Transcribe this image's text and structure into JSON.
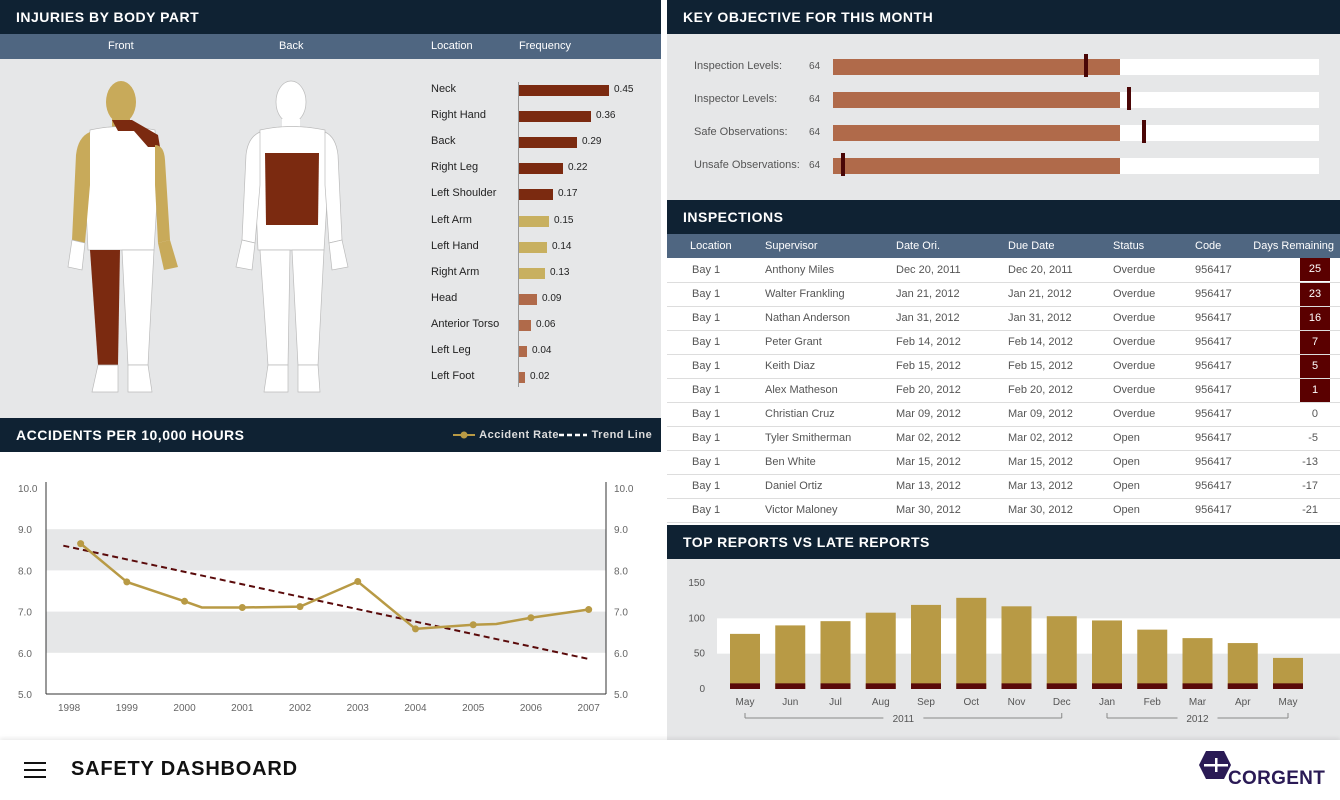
{
  "injuries": {
    "title": "INJURIES BY BODY PART",
    "col_front": "Front",
    "col_back": "Back",
    "col_location": "Location",
    "col_frequency": "Frequency",
    "rows": [
      {
        "label": "Neck",
        "value": "0.45",
        "num": 0.45,
        "color": "#7b2a10"
      },
      {
        "label": "Right Hand",
        "value": "0.36",
        "num": 0.36,
        "color": "#7b2a10"
      },
      {
        "label": "Back",
        "value": "0.29",
        "num": 0.29,
        "color": "#7b2a10"
      },
      {
        "label": "Right Leg",
        "value": "0.22",
        "num": 0.22,
        "color": "#7b2a10"
      },
      {
        "label": "Left Shoulder",
        "value": "0.17",
        "num": 0.17,
        "color": "#7b2a10"
      },
      {
        "label": "Left Arm",
        "value": "0.15",
        "num": 0.15,
        "color": "#c8b060"
      },
      {
        "label": "Left Hand",
        "value": "0.14",
        "num": 0.14,
        "color": "#c8b060"
      },
      {
        "label": "Right Arm",
        "value": "0.13",
        "num": 0.13,
        "color": "#c8b060"
      },
      {
        "label": "Head",
        "value": "0.09",
        "num": 0.09,
        "color": "#b06a4a"
      },
      {
        "label": "Anterior Torso",
        "value": "0.06",
        "num": 0.06,
        "color": "#b06a4a"
      },
      {
        "label": "Left Leg",
        "value": "0.04",
        "num": 0.04,
        "color": "#b06a4a"
      },
      {
        "label": "Left Foot",
        "value": "0.02",
        "num": 0.02,
        "color": "#b06a4a"
      }
    ]
  },
  "objective": {
    "title": "KEY OBJECTIVE FOR THIS MONTH",
    "rows": [
      {
        "label": "Inspection Levels:",
        "value": "64",
        "fill": 0.59,
        "marker": 0.52
      },
      {
        "label": "Inspector Levels:",
        "value": "64",
        "fill": 0.59,
        "marker": 0.61
      },
      {
        "label": "Safe Observations:",
        "value": "64",
        "fill": 0.59,
        "marker": 0.64
      },
      {
        "label": "Unsafe Observations:",
        "value": "64",
        "fill": 0.59,
        "marker": 0.02
      }
    ]
  },
  "accidents": {
    "title": "ACCIDENTS PER 10,000 HOURS",
    "legend_rate": "Accident Rate",
    "legend_trend": "Trend Line"
  },
  "inspections": {
    "title": "INSPECTIONS",
    "headers": [
      "Location",
      "Supervisor",
      "Date Ori.",
      "Due Date",
      "Status",
      "Code",
      "Days Remaining"
    ],
    "rows": [
      [
        "Bay 1",
        "Anthony Miles",
        "Dec 20, 2011",
        "Dec 20, 2011",
        "Overdue",
        "956417",
        "25"
      ],
      [
        "Bay 1",
        "Walter Frankling",
        "Jan 21, 2012",
        "Jan 21, 2012",
        "Overdue",
        "956417",
        "23"
      ],
      [
        "Bay 1",
        "Nathan Anderson",
        "Jan 31, 2012",
        "Jan 31, 2012",
        "Overdue",
        "956417",
        "16"
      ],
      [
        "Bay 1",
        "Peter Grant",
        "Feb 14, 2012",
        "Feb 14, 2012",
        "Overdue",
        "956417",
        "7"
      ],
      [
        "Bay 1",
        "Keith Diaz",
        "Feb 15, 2012",
        "Feb 15, 2012",
        "Overdue",
        "956417",
        "5"
      ],
      [
        "Bay 1",
        "Alex Matheson",
        "Feb 20, 2012",
        "Feb 20, 2012",
        "Overdue",
        "956417",
        "1"
      ],
      [
        "Bay 1",
        "Christian Cruz",
        "Mar 09, 2012",
        "Mar 09, 2012",
        "Overdue",
        "956417",
        "0"
      ],
      [
        "Bay 1",
        "Tyler Smitherman",
        "Mar 02, 2012",
        "Mar 02, 2012",
        "Open",
        "956417",
        "-5"
      ],
      [
        "Bay 1",
        "Ben White",
        "Mar 15, 2012",
        "Mar 15, 2012",
        "Open",
        "956417",
        "-13"
      ],
      [
        "Bay 1",
        "Daniel Ortiz",
        "Mar 13, 2012",
        "Mar 13, 2012",
        "Open",
        "956417",
        "-17"
      ],
      [
        "Bay 1",
        "Victor Maloney",
        "Mar 30, 2012",
        "Mar 30, 2012",
        "Open",
        "956417",
        "-21"
      ]
    ],
    "highlight_color": "#5a0000"
  },
  "reports": {
    "title": "TOP REPORTS VS LATE REPORTS",
    "year_labels": [
      "2011",
      "2012"
    ]
  },
  "footer": {
    "title": "SAFETY DASHBOARD",
    "brand": "CORGENT",
    "menu_icon": "hamburger-menu-icon",
    "logo_icon": "corgent-logo-icon"
  },
  "colors": {
    "navy": "#0f2233",
    "slate": "#4f6681",
    "gold": "#b89a45",
    "maroon": "#5a0a0a",
    "rust": "#b06a4a"
  },
  "chart_data": [
    {
      "type": "bar",
      "title": "INJURIES BY BODY PART",
      "categories": [
        "Neck",
        "Right Hand",
        "Back",
        "Right Leg",
        "Left Shoulder",
        "Left Arm",
        "Left Hand",
        "Right Arm",
        "Head",
        "Anterior Torso",
        "Left Leg",
        "Left Foot"
      ],
      "values": [
        0.45,
        0.36,
        0.29,
        0.22,
        0.17,
        0.15,
        0.14,
        0.13,
        0.09,
        0.06,
        0.04,
        0.02
      ],
      "orientation": "horizontal"
    },
    {
      "type": "line",
      "title": "ACCIDENTS PER 10,000 HOURS",
      "x": [
        "1998",
        "1999",
        "2000",
        "2001",
        "2002",
        "2003",
        "2004",
        "2005",
        "2006",
        "2007"
      ],
      "x_num": [
        1998,
        1999,
        2000,
        2000.3,
        2001,
        2002,
        2003,
        2004,
        2005,
        2005.4,
        2006,
        2007
      ],
      "y_ticks": [
        "5.0",
        "6.0",
        "7.0",
        "8.0",
        "9.0",
        "10.0"
      ],
      "ylim": [
        5.0,
        10.0
      ],
      "grid": "alternating bands",
      "legend": "top-right",
      "series": [
        {
          "name": "Accident Rate",
          "x": [
            1998.2,
            1999,
            2000,
            2000.3,
            2001,
            2002,
            2003,
            2004,
            2005,
            2005.4,
            2006,
            2007
          ],
          "values": [
            8.65,
            7.72,
            7.25,
            7.1,
            7.1,
            7.12,
            7.73,
            6.58,
            6.68,
            6.7,
            6.85,
            7.05
          ],
          "markers": [
            true,
            true,
            true,
            false,
            true,
            true,
            true,
            true,
            true,
            false,
            true,
            true
          ],
          "color": "#b89a45"
        },
        {
          "name": "Trend Line",
          "x": [
            1997.9,
            2007
          ],
          "values": [
            8.6,
            5.85
          ],
          "color": "#5a0a0a",
          "dashed": true
        }
      ]
    },
    {
      "type": "bar",
      "title": "TOP REPORTS VS LATE REPORTS",
      "categories": [
        "May",
        "Jun",
        "Jul",
        "Aug",
        "Sep",
        "Oct",
        "Nov",
        "Dec",
        "Jan",
        "Feb",
        "Mar",
        "Apr",
        "May"
      ],
      "groups": [
        {
          "label": "2011",
          "from": 0,
          "to": 7
        },
        {
          "label": "2012",
          "from": 8,
          "to": 12
        }
      ],
      "y_ticks": [
        "0",
        "50",
        "100",
        "150"
      ],
      "ylim": [
        0,
        150
      ],
      "series": [
        {
          "name": "",
          "values": [
            78,
            90,
            96,
            108,
            119,
            129,
            117,
            103,
            97,
            84,
            72,
            65,
            44
          ],
          "color": "#b89a45"
        },
        {
          "name": "",
          "values": [
            8,
            8,
            8,
            8,
            8,
            8,
            8,
            8,
            8,
            8,
            8,
            8,
            8
          ],
          "color": "#5a0a0a"
        }
      ],
      "stacked": true
    }
  ]
}
